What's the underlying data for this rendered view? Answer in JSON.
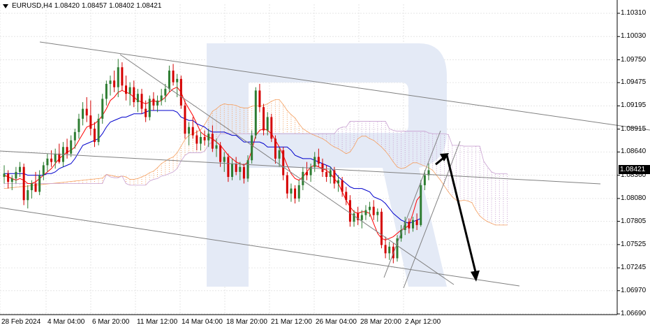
{
  "header": {
    "symbol": "EURUSD,H4",
    "open": "1.08420",
    "high": "1.08457",
    "low": "1.08402",
    "close": "1.08421"
  },
  "current_price_label": "1.08421",
  "colors": {
    "background": "#ffffff",
    "grid": "#e6e6e6",
    "bull_candle": "#2e7d32",
    "bear_candle": "#d50000",
    "tenkan": "#ff0000",
    "kijun": "#0000cc",
    "kumo_bull": "#f5a060",
    "kumo_bear": "#c8a0d0",
    "trendline": "#808080",
    "forecast_arrow": "#000000",
    "watermark": "#e4eaf6"
  },
  "chart_data": {
    "type": "candlestick",
    "symbol": "EURUSD",
    "timeframe": "H4",
    "indicator": "Ichimoku Kinko Hyo",
    "y_ticks": [
      "1.10310",
      "1.10030",
      "1.09750",
      "1.09475",
      "1.09195",
      "1.08915",
      "1.08640",
      "1.08360",
      "1.08080",
      "1.07805",
      "1.07525",
      "1.07245",
      "1.06970",
      "1.06690"
    ],
    "x_ticks": [
      "28 Feb 2024",
      "4 Mar 04:00",
      "6 Mar 20:00",
      "11 Mar 12:00",
      "14 Mar 04:00",
      "18 Mar 20:00",
      "21 Mar 12:00",
      "26 Mar 04:00",
      "28 Mar 20:00",
      "2 Apr 12:00"
    ],
    "ylim": [
      1.0669,
      1.1031
    ],
    "grid": true,
    "forecast": {
      "from": 1.0849,
      "peak": 1.0855,
      "target": 1.0718
    },
    "ohlc": [
      [
        1.0834,
        1.0848,
        1.0826,
        1.0838
      ],
      [
        1.0838,
        1.0842,
        1.082,
        1.0828
      ],
      [
        1.0828,
        1.0836,
        1.0818,
        1.0832
      ],
      [
        1.0832,
        1.0846,
        1.0826,
        1.084
      ],
      [
        1.084,
        1.0852,
        1.0834,
        1.0846
      ],
      [
        1.0846,
        1.085,
        1.08,
        1.0806
      ],
      [
        1.0806,
        1.0824,
        1.0796,
        1.0818
      ],
      [
        1.0818,
        1.083,
        1.0808,
        1.0826
      ],
      [
        1.0826,
        1.084,
        1.0816,
        1.0816
      ],
      [
        1.0816,
        1.0842,
        1.0812,
        1.0836
      ],
      [
        1.0836,
        1.0852,
        1.083,
        1.0848
      ],
      [
        1.0848,
        1.0862,
        1.084,
        1.0856
      ],
      [
        1.0856,
        1.0866,
        1.0846,
        1.0852
      ],
      [
        1.0852,
        1.0868,
        1.0844,
        1.0862
      ],
      [
        1.0862,
        1.0874,
        1.085,
        1.0852
      ],
      [
        1.0852,
        1.0876,
        1.0846,
        1.087
      ],
      [
        1.087,
        1.088,
        1.0856,
        1.0862
      ],
      [
        1.0862,
        1.0884,
        1.0858,
        1.0878
      ],
      [
        1.0878,
        1.0892,
        1.0868,
        1.0888
      ],
      [
        1.0888,
        1.091,
        1.088,
        1.0904
      ],
      [
        1.0904,
        1.0924,
        1.0896,
        1.0916
      ],
      [
        1.0916,
        1.093,
        1.09,
        1.0908
      ],
      [
        1.0908,
        1.0926,
        1.0884,
        1.0892
      ],
      [
        1.0892,
        1.09,
        1.087,
        1.0876
      ],
      [
        1.0876,
        1.091,
        1.0872,
        1.0904
      ],
      [
        1.0904,
        1.0934,
        1.0898,
        1.0928
      ],
      [
        1.0928,
        1.095,
        1.092,
        1.0946
      ],
      [
        1.0946,
        1.0956,
        1.0932,
        1.095
      ],
      [
        1.095,
        1.0962,
        1.0936,
        1.0942
      ],
      [
        1.0942,
        1.0976,
        1.093,
        1.0966
      ],
      [
        1.0966,
        1.0972,
        1.0938,
        1.0944
      ],
      [
        1.0944,
        1.0956,
        1.0926,
        1.0934
      ],
      [
        1.0934,
        1.0948,
        1.092,
        1.0942
      ],
      [
        1.0942,
        1.095,
        1.0918,
        1.0924
      ],
      [
        1.0924,
        1.094,
        1.0912,
        1.0934
      ],
      [
        1.0934,
        1.094,
        1.091,
        1.0916
      ],
      [
        1.0916,
        1.0926,
        1.09,
        1.0906
      ],
      [
        1.0906,
        1.0932,
        1.0902,
        1.0928
      ],
      [
        1.0928,
        1.0936,
        1.0914,
        1.092
      ],
      [
        1.092,
        1.0932,
        1.0912,
        1.0926
      ],
      [
        1.0926,
        1.094,
        1.092,
        1.0932
      ],
      [
        1.0932,
        1.0946,
        1.0924,
        1.094
      ],
      [
        1.094,
        1.0968,
        1.0936,
        1.0962
      ],
      [
        1.0962,
        1.097,
        1.0944,
        1.0948
      ],
      [
        1.0948,
        1.0958,
        1.093,
        1.0952
      ],
      [
        1.0952,
        1.0956,
        1.0916,
        1.092
      ],
      [
        1.092,
        1.0926,
        1.088,
        1.0886
      ],
      [
        1.0886,
        1.09,
        1.0872,
        1.0894
      ],
      [
        1.0894,
        1.0906,
        1.088,
        1.0884
      ],
      [
        1.0884,
        1.089,
        1.0866,
        1.0874
      ],
      [
        1.0874,
        1.0888,
        1.0866,
        1.0882
      ],
      [
        1.0882,
        1.089,
        1.0872,
        1.0878
      ],
      [
        1.0878,
        1.0892,
        1.087,
        1.0886
      ],
      [
        1.0886,
        1.0896,
        1.0864,
        1.0868
      ],
      [
        1.0868,
        1.088,
        1.0858,
        1.0872
      ],
      [
        1.0872,
        1.0876,
        1.0846,
        1.0852
      ],
      [
        1.0852,
        1.0864,
        1.084,
        1.0858
      ],
      [
        1.0858,
        1.0862,
        1.0828,
        1.0834
      ],
      [
        1.0834,
        1.0856,
        1.083,
        1.085
      ],
      [
        1.085,
        1.0858,
        1.0836,
        1.084
      ],
      [
        1.084,
        1.0852,
        1.083,
        1.0846
      ],
      [
        1.0846,
        1.085,
        1.0826,
        1.0832
      ],
      [
        1.0832,
        1.086,
        1.0828,
        1.0854
      ],
      [
        1.0854,
        1.089,
        1.085,
        1.0884
      ],
      [
        1.0884,
        1.0942,
        1.088,
        1.0938
      ],
      [
        1.0938,
        1.0946,
        1.0912,
        1.0918
      ],
      [
        1.0918,
        1.0922,
        1.0884,
        1.089
      ],
      [
        1.089,
        1.0912,
        1.0884,
        1.0906
      ],
      [
        1.0906,
        1.091,
        1.0876,
        1.088
      ],
      [
        1.088,
        1.0884,
        1.085,
        1.0856
      ],
      [
        1.0856,
        1.087,
        1.0846,
        1.0866
      ],
      [
        1.0866,
        1.087,
        1.083,
        1.0836
      ],
      [
        1.0836,
        1.084,
        1.0808,
        1.0814
      ],
      [
        1.0814,
        1.0826,
        1.0804,
        1.082
      ],
      [
        1.082,
        1.0824,
        1.0802,
        1.0808
      ],
      [
        1.0808,
        1.083,
        1.0804,
        1.0824
      ],
      [
        1.0824,
        1.0846,
        1.0818,
        1.084
      ],
      [
        1.084,
        1.0852,
        1.083,
        1.0836
      ],
      [
        1.0836,
        1.085,
        1.0828,
        1.0846
      ],
      [
        1.0846,
        1.0864,
        1.084,
        1.0858
      ],
      [
        1.0858,
        1.0868,
        1.0846,
        1.085
      ],
      [
        1.085,
        1.0856,
        1.0834,
        1.084
      ],
      [
        1.084,
        1.0848,
        1.0828,
        1.0834
      ],
      [
        1.0834,
        1.0846,
        1.0826,
        1.0842
      ],
      [
        1.0842,
        1.0846,
        1.082,
        1.0826
      ],
      [
        1.0826,
        1.0836,
        1.0816,
        1.083
      ],
      [
        1.083,
        1.0834,
        1.081,
        1.0816
      ],
      [
        1.0816,
        1.0822,
        1.08,
        1.0806
      ],
      [
        1.0806,
        1.0812,
        1.0774,
        1.078
      ],
      [
        1.078,
        1.0794,
        1.0774,
        1.079
      ],
      [
        1.079,
        1.0798,
        1.0776,
        1.0782
      ],
      [
        1.0782,
        1.0794,
        1.0772,
        1.0788
      ],
      [
        1.0788,
        1.08,
        1.0782,
        1.0794
      ],
      [
        1.0794,
        1.0804,
        1.0786,
        1.0798
      ],
      [
        1.0798,
        1.0806,
        1.0782,
        1.0788
      ],
      [
        1.0788,
        1.0796,
        1.078,
        1.0792
      ],
      [
        1.0792,
        1.0796,
        1.0748,
        1.0752
      ],
      [
        1.0752,
        1.0762,
        1.0736,
        1.0742
      ],
      [
        1.0742,
        1.0756,
        1.0734,
        1.075
      ],
      [
        1.075,
        1.0754,
        1.073,
        1.0736
      ],
      [
        1.0736,
        1.0764,
        1.0732,
        1.076
      ],
      [
        1.076,
        1.0776,
        1.0756,
        1.077
      ],
      [
        1.077,
        1.0786,
        1.0764,
        1.078
      ],
      [
        1.078,
        1.0784,
        1.0766,
        1.0772
      ],
      [
        1.0772,
        1.0786,
        1.0768,
        1.0782
      ],
      [
        1.0782,
        1.079,
        1.077,
        1.0776
      ],
      [
        1.0776,
        1.083,
        1.0774,
        1.0824
      ],
      [
        1.0824,
        1.0842,
        1.0818,
        1.0836
      ],
      [
        1.0836,
        1.085,
        1.083,
        1.0842
      ]
    ],
    "tenkan": [
      1.0836,
      1.0834,
      1.0832,
      1.083,
      1.0832,
      1.083,
      1.0826,
      1.0826,
      1.0828,
      1.0832,
      1.0836,
      1.084,
      1.0844,
      1.085,
      1.0856,
      1.086,
      1.0864,
      1.0866,
      1.087,
      1.0878,
      1.0886,
      1.0894,
      1.0896,
      1.0898,
      1.0902,
      1.0908,
      1.0916,
      1.0926,
      1.093,
      1.0936,
      1.0938,
      1.0936,
      1.0934,
      1.093,
      1.0926,
      1.0924,
      1.0922,
      1.0924,
      1.0926,
      1.0924,
      1.0926,
      1.093,
      1.0936,
      1.094,
      1.0942,
      1.0936,
      1.0924,
      1.0916,
      1.0908,
      1.0898,
      1.0888,
      1.0884,
      1.0882,
      1.088,
      1.0876,
      1.0872,
      1.0866,
      1.086,
      1.0856,
      1.0852,
      1.085,
      1.0848,
      1.0852,
      1.0866,
      1.0884,
      1.089,
      1.0892,
      1.089,
      1.0886,
      1.0878,
      1.087,
      1.086,
      1.0848,
      1.0838,
      1.0832,
      1.083,
      1.0834,
      1.084,
      1.0846,
      1.0848,
      1.0846,
      1.0844,
      1.0842,
      1.0838,
      1.0832,
      1.0826,
      1.0816,
      1.0806,
      1.0798,
      1.0792,
      1.079,
      1.0792,
      1.0792,
      1.079,
      1.0778,
      1.0766,
      1.076,
      1.0758,
      1.076,
      1.0762,
      1.0766,
      1.077,
      1.0772,
      1.0776,
      1.079,
      1.0806,
      1.0812
    ],
    "kijun": [
      1.0838,
      1.0838,
      1.0838,
      1.0838,
      1.0838,
      1.0838,
      1.0836,
      1.0836,
      1.0836,
      1.0836,
      1.0836,
      1.0838,
      1.0838,
      1.084,
      1.0844,
      1.0846,
      1.0848,
      1.085,
      1.0856,
      1.0864,
      1.0872,
      1.0874,
      1.0876,
      1.0878,
      1.088,
      1.0886,
      1.0894,
      1.09,
      1.0902,
      1.0904,
      1.0906,
      1.0906,
      1.0908,
      1.091,
      1.091,
      1.091,
      1.0912,
      1.0914,
      1.0914,
      1.0914,
      1.0914,
      1.0914,
      1.0914,
      1.0914,
      1.0912,
      1.0906,
      1.0904,
      1.0902,
      1.0902,
      1.0898,
      1.0896,
      1.0894,
      1.089,
      1.0888,
      1.0888,
      1.0888,
      1.0888,
      1.0886,
      1.0884,
      1.0884,
      1.088,
      1.0876,
      1.0876,
      1.0876,
      1.0876,
      1.0876,
      1.0874,
      1.087,
      1.087,
      1.087,
      1.087,
      1.087,
      1.087,
      1.0866,
      1.086,
      1.0858,
      1.0856,
      1.0856,
      1.0856,
      1.0854,
      1.0852,
      1.085,
      1.0848,
      1.0846,
      1.084,
      1.0834,
      1.083,
      1.0826,
      1.0822,
      1.082,
      1.082,
      1.082,
      1.0818,
      1.0816,
      1.081,
      1.0808,
      1.0806,
      1.0802,
      1.0796,
      1.079,
      1.0786,
      1.0782,
      1.078,
      1.0778,
      1.078,
      1.0782,
      1.0784
    ]
  }
}
